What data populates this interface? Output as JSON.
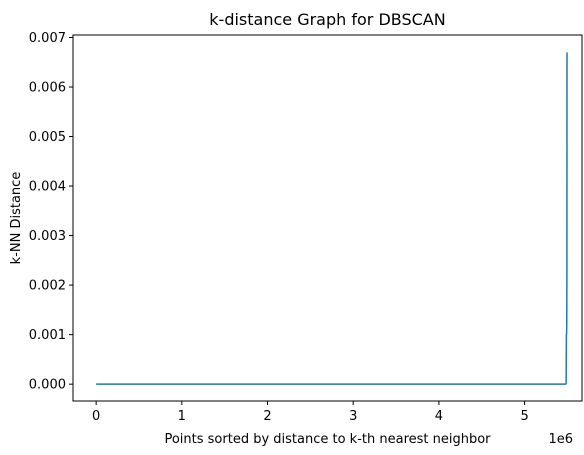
{
  "chart_data": {
    "type": "line",
    "title": "k-distance Graph for DBSCAN",
    "xlabel": "Points sorted by distance to k-th nearest neighbor",
    "ylabel": "k-NN Distance",
    "x_offset_label": "1e6",
    "xlim": [
      -0.27,
      5.67
    ],
    "ylim": [
      -0.00034,
      0.00705
    ],
    "x_ticks": [
      0,
      1,
      2,
      3,
      4,
      5
    ],
    "x_tick_labels": [
      "0",
      "1",
      "2",
      "3",
      "4",
      "5"
    ],
    "y_ticks": [
      0,
      0.001,
      0.002,
      0.003,
      0.004,
      0.005,
      0.006,
      0.007
    ],
    "y_tick_labels": [
      "0.000",
      "0.001",
      "0.002",
      "0.003",
      "0.004",
      "0.005",
      "0.006",
      "0.007"
    ],
    "grid": false,
    "series": [
      {
        "color": "#1f77b4",
        "x": [
          0,
          4.9,
          5.3,
          5.48,
          5.485,
          5.488,
          5.49,
          5.492,
          5.494,
          5.495
        ],
        "y": [
          0,
          0,
          0,
          0,
          2e-05,
          0.001,
          0.001,
          0.0012,
          0.0025,
          0.0067
        ]
      }
    ]
  }
}
